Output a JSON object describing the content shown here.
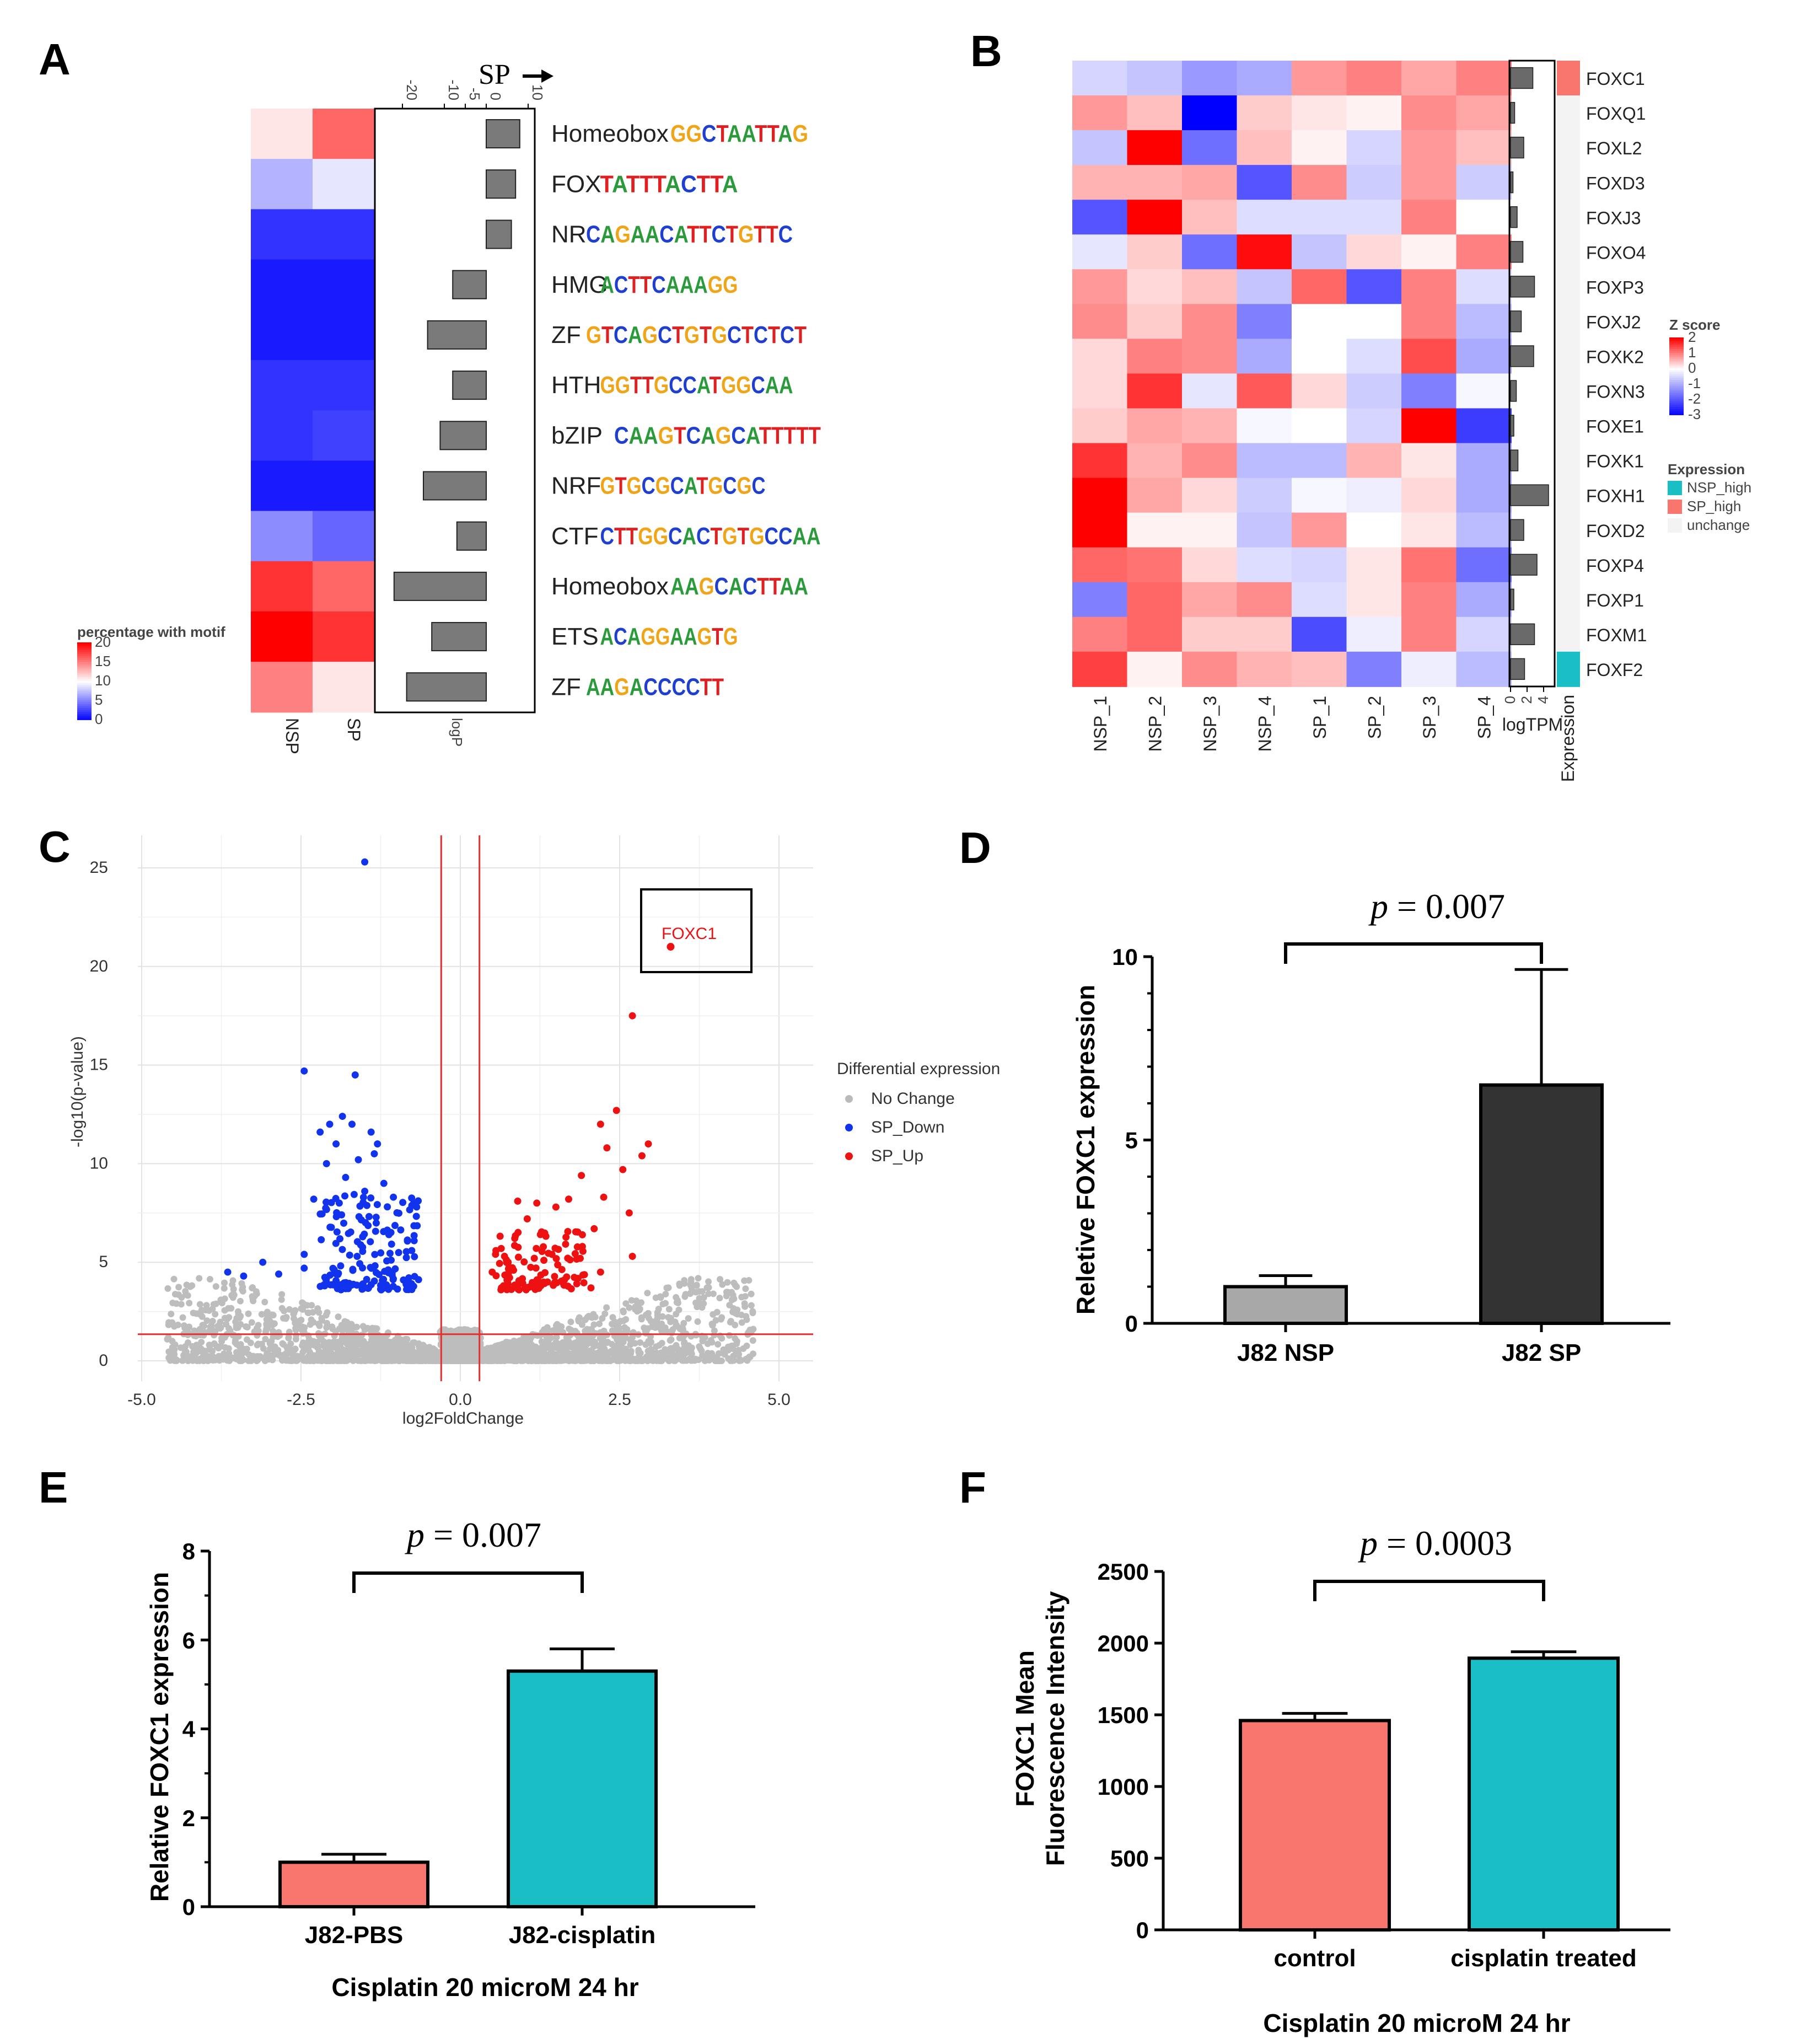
{
  "panels": {
    "A": "A",
    "B": "B",
    "C": "C",
    "D": "D",
    "E": "E",
    "F": "F"
  },
  "colors": {
    "red": "#f8766d",
    "teal": "#19bfc4",
    "grey": "#a8a8a8",
    "dark": "#333333",
    "sp_up": "#ee1111",
    "sp_down": "#1133ee",
    "nochange": "#bbbbbb"
  },
  "chart_data": [
    {
      "panel": "A",
      "type": "heatmap",
      "direction_label": "SP",
      "columns": [
        "NSP",
        "SP"
      ],
      "bar_axis_label": "logP",
      "bar_axis_ticks": [
        "-20",
        "-10",
        "-5",
        "0",
        "10"
      ],
      "legend": {
        "title": "percentage with motif",
        "ticks": [
          "20",
          "15",
          "10",
          "5",
          "0"
        ],
        "range": [
          0,
          20
        ]
      },
      "rows": [
        {
          "family": "Homeobox",
          "motif": "GGCTAATTAG",
          "pct": [
            11,
            16
          ],
          "logP": 8
        },
        {
          "family": "FOX",
          "motif": "TATTTACTTA",
          "pct": [
            7,
            9
          ],
          "logP": 7
        },
        {
          "family": "NR",
          "motif": "CAGAACATTCTGTTC",
          "pct": [
            2,
            2
          ],
          "logP": 6
        },
        {
          "family": "HMG",
          "motif": "ACTTCAAAGG",
          "pct": [
            1,
            1
          ],
          "logP": -8
        },
        {
          "family": "ZF",
          "motif": "GTCAGCTGTGCTCTCT",
          "pct": [
            1,
            1
          ],
          "logP": -14
        },
        {
          "family": "HTH",
          "motif": "GGTTGCCATGGCAA",
          "pct": [
            2,
            2
          ],
          "logP": -8
        },
        {
          "family": "bZIP",
          "motif": "CAAGTCAGCATTTTT",
          "pct": [
            2,
            2.5
          ],
          "logP": -11
        },
        {
          "family": "NRF",
          "motif": "GTGCGCATGCGC",
          "pct": [
            1,
            1
          ],
          "logP": -15
        },
        {
          "family": "CTF",
          "motif": "CTTGGCACTGTGCCAA",
          "pct": [
            5.5,
            4
          ],
          "logP": -7
        },
        {
          "family": "Homeobox",
          "motif": "AAGCACTTAA",
          "pct": [
            18,
            16
          ],
          "logP": -22
        },
        {
          "family": "ETS",
          "motif": "ACAGGAAGTG",
          "pct": [
            20,
            18
          ],
          "logP": -13
        },
        {
          "family": "ZF",
          "motif": "AAGACCCCTT",
          "pct": [
            15,
            11
          ],
          "logP": -19
        }
      ]
    },
    {
      "panel": "B",
      "type": "heatmap",
      "columns": [
        "NSP_1",
        "NSP_2",
        "NSP_3",
        "NSP_4",
        "SP_1",
        "SP_2",
        "SP_3",
        "SP_4"
      ],
      "logtpm_label": "logTPM",
      "logtpm_ticks": [
        "0",
        "2",
        "4"
      ],
      "expression_label": "Expression",
      "legend_z": {
        "title": "Z score",
        "ticks": [
          "2",
          "1",
          "0",
          "-1",
          "-2",
          "-3"
        ],
        "range": [
          -3,
          2
        ]
      },
      "legend_expr": {
        "title": "Expression",
        "items": [
          "NSP_high",
          "SP_high",
          "unchange"
        ]
      },
      "genes": [
        {
          "name": "FOXC1",
          "z": [
            -0.5,
            -0.7,
            -1.2,
            -1.0,
            0.8,
            1.0,
            0.7,
            1.0
          ],
          "logTPM": 2.7,
          "expr": "SP_high"
        },
        {
          "name": "FOXQ1",
          "z": [
            0.8,
            0.5,
            -3.0,
            0.4,
            0.2,
            0.1,
            0.9,
            0.7
          ],
          "logTPM": 0.5,
          "expr": "unchange"
        },
        {
          "name": "FOXL2",
          "z": [
            -0.7,
            2.0,
            -1.7,
            0.5,
            0.1,
            -0.5,
            0.8,
            0.5
          ],
          "logTPM": 1.6,
          "expr": "unchange"
        },
        {
          "name": "FOXD3",
          "z": [
            0.6,
            0.6,
            0.7,
            -2.0,
            0.9,
            -0.6,
            0.8,
            -0.6
          ],
          "logTPM": 0.3,
          "expr": "unchange"
        },
        {
          "name": "FOXJ3",
          "z": [
            -2.0,
            2.1,
            0.5,
            -0.4,
            -0.4,
            -0.4,
            1.0,
            0.0
          ],
          "logTPM": 0.8,
          "expr": "unchange"
        },
        {
          "name": "FOXO4",
          "z": [
            -0.3,
            0.4,
            -1.7,
            1.9,
            -0.7,
            0.3,
            0.1,
            1.0
          ],
          "logTPM": 1.5,
          "expr": "unchange"
        },
        {
          "name": "FOXP3",
          "z": [
            0.8,
            0.3,
            0.5,
            -0.7,
            1.2,
            -2.0,
            1.0,
            -0.4
          ],
          "logTPM": 2.9,
          "expr": "unchange"
        },
        {
          "name": "FOXJ2",
          "z": [
            0.9,
            0.4,
            0.9,
            -1.5,
            0.0,
            0.0,
            1.0,
            -0.8
          ],
          "logTPM": 1.3,
          "expr": "unchange"
        },
        {
          "name": "FOXK2",
          "z": [
            0.3,
            1.0,
            0.9,
            -1.0,
            0.0,
            -0.4,
            1.4,
            -1.0
          ],
          "logTPM": 2.8,
          "expr": "unchange"
        },
        {
          "name": "FOXN3",
          "z": [
            0.3,
            1.6,
            -0.3,
            1.3,
            0.3,
            -0.6,
            -1.5,
            -0.1
          ],
          "logTPM": 0.7,
          "expr": "unchange"
        },
        {
          "name": "FOXE1",
          "z": [
            0.4,
            0.7,
            0.6,
            -0.1,
            0.0,
            -0.5,
            2.0,
            -2.3
          ],
          "logTPM": 0.4,
          "expr": "unchange"
        },
        {
          "name": "FOXK1",
          "z": [
            1.6,
            0.6,
            0.9,
            -0.8,
            -0.8,
            0.6,
            0.2,
            -1.0
          ],
          "logTPM": 0.9,
          "expr": "unchange"
        },
        {
          "name": "FOXH1",
          "z": [
            2.4,
            0.7,
            0.3,
            -0.6,
            -0.1,
            -0.2,
            0.3,
            -1.0
          ],
          "logTPM": 4.6,
          "expr": "unchange"
        },
        {
          "name": "FOXD2",
          "z": [
            2.4,
            0.1,
            0.1,
            -0.7,
            0.8,
            0.0,
            0.2,
            -0.8
          ],
          "logTPM": 1.6,
          "expr": "unchange"
        },
        {
          "name": "FOXP4",
          "z": [
            1.2,
            1.1,
            0.3,
            -0.4,
            -0.5,
            0.2,
            1.1,
            -1.7
          ],
          "logTPM": 3.2,
          "expr": "unchange"
        },
        {
          "name": "FOXP1",
          "z": [
            -1.5,
            1.2,
            0.7,
            0.9,
            -0.4,
            0.2,
            1.0,
            -1.0
          ],
          "logTPM": 0.4,
          "expr": "unchange"
        },
        {
          "name": "FOXM1",
          "z": [
            1.0,
            1.2,
            0.4,
            0.4,
            -2.1,
            -0.2,
            1.0,
            -0.5
          ],
          "logTPM": 2.9,
          "expr": "unchange"
        },
        {
          "name": "FOXF2",
          "z": [
            1.5,
            0.1,
            0.9,
            0.6,
            0.5,
            -1.5,
            -0.2,
            -0.8
          ],
          "logTPM": 1.7,
          "expr": "NSP_high"
        }
      ]
    },
    {
      "panel": "C",
      "type": "scatter",
      "xlabel": "log2FoldChange",
      "ylabel": "-log10(p-value)",
      "xlim": [
        -5.2,
        5.3
      ],
      "ylim": [
        0,
        26
      ],
      "x_ticks": [
        "-5.0",
        "-2.5",
        "0.0",
        "2.5",
        "5.0"
      ],
      "y_ticks": [
        "0",
        "5",
        "10",
        "15",
        "20",
        "25"
      ],
      "legend_title": "Differential expression",
      "legend_items": [
        "No Change",
        "SP_Down",
        "SP_Up"
      ],
      "highlight": {
        "label": "FOXC1",
        "x": 3.3,
        "y": 21
      },
      "thresholds": {
        "fc": [
          -0.3,
          0.3
        ],
        "p": 1.35
      },
      "down_points": [
        [
          -1.5,
          25.3
        ],
        [
          -2.45,
          14.7
        ],
        [
          -1.65,
          14.5
        ],
        [
          -1.85,
          12.4
        ],
        [
          -2.05,
          12.0
        ],
        [
          -1.95,
          11.0
        ],
        [
          -2.2,
          11.6
        ],
        [
          -1.7,
          12.0
        ],
        [
          -1.4,
          11.6
        ],
        [
          -1.3,
          11.0
        ],
        [
          -1.6,
          10.2
        ],
        [
          -2.1,
          10.0
        ],
        [
          -1.35,
          10.5
        ],
        [
          -1.8,
          9.3
        ],
        [
          -1.2,
          9.0
        ],
        [
          -1.5,
          8.6
        ],
        [
          -2.3,
          8.2
        ],
        [
          -1.9,
          8.0
        ],
        [
          -1.05,
          8.3
        ],
        [
          -3.1,
          5.0
        ],
        [
          -3.65,
          4.5
        ],
        [
          -3.4,
          4.3
        ],
        [
          -2.85,
          4.4
        ],
        [
          -2.45,
          4.7
        ],
        [
          -2.1,
          4.2
        ],
        [
          -2.45,
          5.4
        ]
      ],
      "up_points": [
        [
          2.7,
          17.5
        ],
        [
          2.2,
          12.0
        ],
        [
          2.45,
          12.7
        ],
        [
          2.95,
          11.0
        ],
        [
          2.85,
          10.4
        ],
        [
          2.3,
          10.8
        ],
        [
          2.55,
          9.7
        ],
        [
          1.9,
          9.4
        ],
        [
          2.25,
          8.3
        ],
        [
          2.65,
          7.5
        ],
        [
          1.7,
          8.2
        ],
        [
          1.2,
          8.0
        ],
        [
          0.9,
          8.1
        ],
        [
          1.5,
          7.8
        ],
        [
          1.05,
          7.2
        ],
        [
          2.1,
          6.7
        ],
        [
          2.7,
          5.3
        ],
        [
          2.2,
          4.5
        ],
        [
          0.5,
          4.5
        ],
        [
          0.75,
          5.0
        ],
        [
          2.05,
          3.7
        ]
      ],
      "down_cluster": {
        "x": [
          -2.2,
          -0.65
        ],
        "y": [
          3.6,
          8.5
        ],
        "n": 160
      },
      "up_cluster": {
        "x": [
          0.55,
          1.95
        ],
        "y": [
          3.6,
          6.6
        ],
        "n": 110
      }
    },
    {
      "panel": "D",
      "type": "bar",
      "ylabel": "Reletive FOXC1 expression",
      "categories": [
        "J82 NSP",
        "J82 SP"
      ],
      "values": [
        1.0,
        6.5
      ],
      "errors": [
        0.3,
        3.15
      ],
      "ylim": [
        0,
        10
      ],
      "y_ticks": [
        "0",
        "5",
        "10"
      ],
      "pvalue": "p = 0.007",
      "p_symbol": "p",
      "p_number": " = 0.007"
    },
    {
      "panel": "E",
      "type": "bar",
      "ylabel": "Relative FOXC1 expression",
      "xlabel": "Cisplatin 20 microM 24 hr",
      "categories": [
        "J82-PBS",
        "J82-cisplatin"
      ],
      "values": [
        1.0,
        5.3
      ],
      "errors": [
        0.18,
        0.5
      ],
      "ylim": [
        0,
        8
      ],
      "y_ticks": [
        "0",
        "2",
        "4",
        "6",
        "8"
      ],
      "pvalue": "p = 0.007",
      "p_symbol": "p",
      "p_number": " = 0.007"
    },
    {
      "panel": "F",
      "type": "bar",
      "ylabel": "FOXC1 Mean Fluorescence Intensity",
      "ylabel_lines": [
        "FOXC1 Mean",
        "Fluorescence Intensity"
      ],
      "xlabel": "Cisplatin 20 microM 24 hr",
      "categories": [
        "control",
        "cisplatin treated"
      ],
      "values": [
        1460,
        1895
      ],
      "errors": [
        50,
        45
      ],
      "ylim": [
        0,
        2500
      ],
      "y_ticks": [
        "0",
        "500",
        "1000",
        "1500",
        "2000",
        "2500"
      ],
      "pvalue": "p = 0.0003",
      "p_symbol": "p",
      "p_number": " = 0.0003"
    }
  ]
}
